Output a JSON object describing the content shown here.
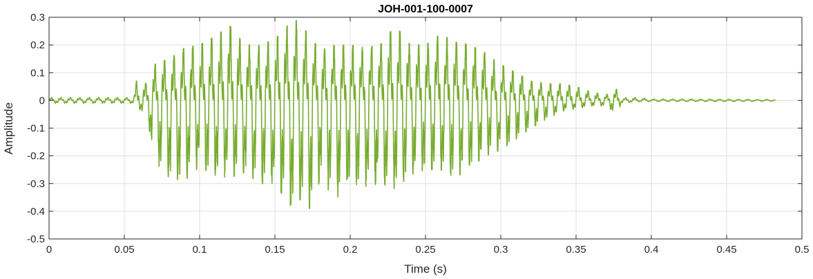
{
  "chart_data": {
    "type": "line",
    "title": "JOH-001-100-0007",
    "xlabel": "Time (s)",
    "ylabel": "Amplitude",
    "xlim": [
      0,
      0.5
    ],
    "ylim": [
      -0.5,
      0.3
    ],
    "grid": true,
    "x_ticks": [
      0,
      0.05,
      0.1,
      0.15,
      0.2,
      0.25,
      0.3,
      0.35,
      0.4,
      0.45,
      0.5
    ],
    "x_tick_labels": [
      "0",
      "0.05",
      "0.1",
      "0.15",
      "0.2",
      "0.25",
      "0.3",
      "0.35",
      "0.4",
      "0.45",
      "0.5"
    ],
    "y_ticks": [
      0.3,
      0.2,
      0.1,
      0,
      -0.1,
      -0.2,
      -0.3,
      -0.4,
      -0.5
    ],
    "y_tick_labels": [
      "0.3",
      "0.2",
      "0.1",
      "0",
      "-0.1",
      "-0.2",
      "-0.3",
      "-0.4",
      "-0.5"
    ],
    "series": [
      {
        "color": "#77ac30",
        "x_start": 0,
        "x_end": 0.4825,
        "envelope_time": [
          0,
          0.056,
          0.058,
          0.065,
          0.07,
          0.08,
          0.09,
          0.1,
          0.11,
          0.12,
          0.13,
          0.14,
          0.15,
          0.16,
          0.165,
          0.175,
          0.18,
          0.19,
          0.2,
          0.21,
          0.22,
          0.23,
          0.24,
          0.25,
          0.26,
          0.27,
          0.28,
          0.29,
          0.3,
          0.31,
          0.32,
          0.33,
          0.34,
          0.35,
          0.36,
          0.37,
          0.377,
          0.38,
          0.39,
          0.4,
          0.45,
          0.4825
        ],
        "envelope_max": [
          0.01,
          0.01,
          0.07,
          0.06,
          0.13,
          0.15,
          0.19,
          0.2,
          0.23,
          0.27,
          0.2,
          0.2,
          0.22,
          0.28,
          0.29,
          0.22,
          0.18,
          0.2,
          0.2,
          0.19,
          0.2,
          0.27,
          0.2,
          0.2,
          0.24,
          0.21,
          0.2,
          0.17,
          0.13,
          0.1,
          0.07,
          0.06,
          0.06,
          0.05,
          0.03,
          0.02,
          0.04,
          0.01,
          0.01,
          0.005,
          0.004,
          0.003
        ],
        "envelope_min": [
          -0.01,
          -0.01,
          -0.02,
          -0.06,
          -0.22,
          -0.28,
          -0.29,
          -0.24,
          -0.27,
          -0.28,
          -0.26,
          -0.3,
          -0.3,
          -0.38,
          -0.35,
          -0.4,
          -0.28,
          -0.36,
          -0.3,
          -0.31,
          -0.3,
          -0.32,
          -0.27,
          -0.25,
          -0.25,
          -0.28,
          -0.24,
          -0.2,
          -0.18,
          -0.14,
          -0.1,
          -0.07,
          -0.04,
          -0.03,
          -0.02,
          -0.02,
          -0.05,
          -0.01,
          -0.005,
          -0.004,
          -0.004,
          -0.003
        ]
      }
    ]
  }
}
